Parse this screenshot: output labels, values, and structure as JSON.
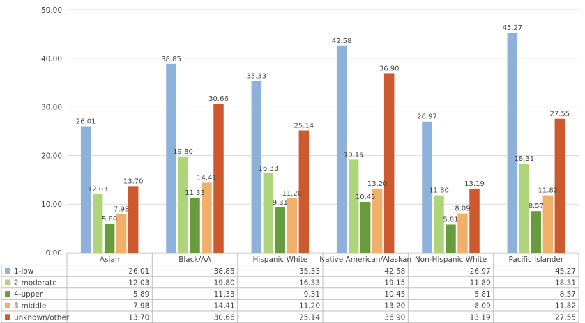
{
  "chart_data": {
    "type": "bar",
    "title": "",
    "xlabel": "",
    "ylabel": "",
    "ylim": [
      0,
      50
    ],
    "yticks": [
      "0.00",
      "10.00",
      "20.00",
      "30.00",
      "40.00",
      "50.00"
    ],
    "grid": true,
    "legend": "data-table-left",
    "categories": [
      "Asian",
      "Black/AA",
      "Hispanic White",
      "Native American/Alaskan",
      "Non-Hispanic White",
      "Pacific Islander"
    ],
    "series": [
      {
        "name": "1-low",
        "color": "#8db1d8",
        "values": [
          26.01,
          38.85,
          35.33,
          42.58,
          26.97,
          45.27
        ]
      },
      {
        "name": "2-moderate",
        "color": "#aed57a",
        "values": [
          12.03,
          19.8,
          16.33,
          19.15,
          11.8,
          18.31
        ]
      },
      {
        "name": "4-upper",
        "color": "#679b3e",
        "values": [
          5.89,
          11.33,
          9.31,
          10.45,
          5.81,
          8.57
        ]
      },
      {
        "name": "3-middle",
        "color": "#f0b06a",
        "values": [
          7.98,
          14.41,
          11.2,
          13.2,
          8.09,
          11.82
        ]
      },
      {
        "name": "unknown/other",
        "color": "#cc5a2e",
        "values": [
          13.7,
          30.66,
          25.14,
          36.9,
          13.19,
          27.55
        ]
      }
    ]
  }
}
